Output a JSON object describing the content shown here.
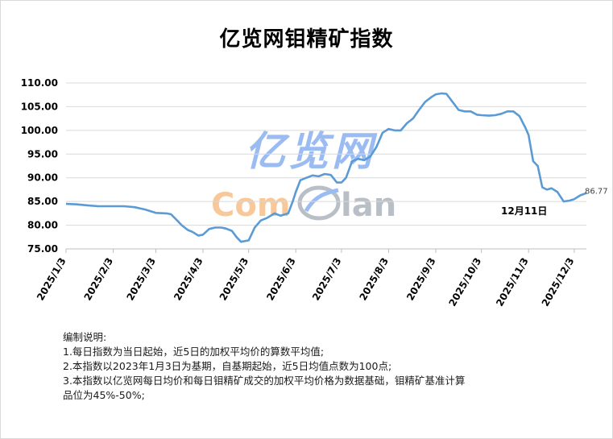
{
  "title": "亿览网钼精矿指数",
  "watermark": {
    "brand_cn": "亿览网",
    "brand_en_part1": "Com",
    "brand_en_part2": "lan"
  },
  "notes": {
    "heading": "编制说明:",
    "lines": [
      "1.每日指数为当日起始，近5日的加权平均价的算数平均值;",
      "2.本指数以2023年1月3日为基期，自基期起始，近5日均值点数为100点;",
      "3.本指数以亿览网每日均价和每日钼精矿成交的加权平均价格为数据基础，钼精矿基准计算",
      "品位为45%-50%;"
    ]
  },
  "chart_data": {
    "type": "line",
    "title": "亿览网钼精矿指数",
    "xlabel": "",
    "ylabel": "",
    "ylim": [
      75,
      110
    ],
    "y_ticks": [
      "75.00",
      "80.00",
      "85.00",
      "90.00",
      "95.00",
      "100.00",
      "105.00",
      "110.00"
    ],
    "x_ticks": [
      "2025/1/3",
      "2025/2/3",
      "2025/3/3",
      "2025/4/3",
      "2025/5/3",
      "2025/6/3",
      "2025/7/3",
      "2025/8/3",
      "2025/9/3",
      "2025/10/3",
      "2025/11/3",
      "2025/12/3"
    ],
    "grid": "horizontal",
    "line_color": "#5b9bd5",
    "x_start": "2025-01-03",
    "x_end": "2025-12-11",
    "series": [
      {
        "points": [
          [
            "2025-01-03",
            84.5
          ],
          [
            "2025-01-10",
            84.4
          ],
          [
            "2025-01-17",
            84.2
          ],
          [
            "2025-01-24",
            84.0
          ],
          [
            "2025-02-03",
            84.0
          ],
          [
            "2025-02-10",
            84.0
          ],
          [
            "2025-02-17",
            83.8
          ],
          [
            "2025-02-24",
            83.3
          ],
          [
            "2025-03-03",
            82.6
          ],
          [
            "2025-03-10",
            82.5
          ],
          [
            "2025-03-13",
            82.3
          ],
          [
            "2025-03-17",
            81.0
          ],
          [
            "2025-03-20",
            80.0
          ],
          [
            "2025-03-24",
            79.0
          ],
          [
            "2025-03-27",
            78.6
          ],
          [
            "2025-03-31",
            77.8
          ],
          [
            "2025-04-03",
            78.0
          ],
          [
            "2025-04-07",
            79.2
          ],
          [
            "2025-04-11",
            79.5
          ],
          [
            "2025-04-15",
            79.5
          ],
          [
            "2025-04-18",
            79.3
          ],
          [
            "2025-04-22",
            78.8
          ],
          [
            "2025-04-25",
            77.5
          ],
          [
            "2025-04-28",
            76.5
          ],
          [
            "2025-05-03",
            76.8
          ],
          [
            "2025-05-07",
            79.5
          ],
          [
            "2025-05-11",
            81.0
          ],
          [
            "2025-05-15",
            81.5
          ],
          [
            "2025-05-20",
            82.5
          ],
          [
            "2025-05-24",
            82.0
          ],
          [
            "2025-05-29",
            82.5
          ],
          [
            "2025-06-01",
            85.0
          ],
          [
            "2025-06-03",
            87.0
          ],
          [
            "2025-06-06",
            89.5
          ],
          [
            "2025-06-10",
            90.0
          ],
          [
            "2025-06-14",
            90.5
          ],
          [
            "2025-06-18",
            90.3
          ],
          [
            "2025-06-22",
            90.8
          ],
          [
            "2025-06-26",
            90.6
          ],
          [
            "2025-06-30",
            89.0
          ],
          [
            "2025-07-03",
            89.0
          ],
          [
            "2025-07-06",
            90.0
          ],
          [
            "2025-07-10",
            93.5
          ],
          [
            "2025-07-14",
            94.0
          ],
          [
            "2025-07-18",
            93.7
          ],
          [
            "2025-07-22",
            94.5
          ],
          [
            "2025-07-26",
            96.5
          ],
          [
            "2025-07-30",
            99.5
          ],
          [
            "2025-08-03",
            100.3
          ],
          [
            "2025-08-07",
            100.0
          ],
          [
            "2025-08-11",
            100.0
          ],
          [
            "2025-08-15",
            101.5
          ],
          [
            "2025-08-19",
            102.5
          ],
          [
            "2025-08-23",
            104.3
          ],
          [
            "2025-08-27",
            106.0
          ],
          [
            "2025-08-31",
            107.0
          ],
          [
            "2025-09-03",
            107.6
          ],
          [
            "2025-09-07",
            107.8
          ],
          [
            "2025-09-10",
            107.7
          ],
          [
            "2025-09-14",
            106.0
          ],
          [
            "2025-09-18",
            104.3
          ],
          [
            "2025-09-22",
            104.0
          ],
          [
            "2025-09-26",
            104.0
          ],
          [
            "2025-09-30",
            103.3
          ],
          [
            "2025-10-03",
            103.2
          ],
          [
            "2025-10-08",
            103.1
          ],
          [
            "2025-10-12",
            103.2
          ],
          [
            "2025-10-16",
            103.5
          ],
          [
            "2025-10-20",
            104.0
          ],
          [
            "2025-10-24",
            104.0
          ],
          [
            "2025-10-28",
            103.0
          ],
          [
            "2025-11-01",
            100.5
          ],
          [
            "2025-11-03",
            99.0
          ],
          [
            "2025-11-06",
            93.5
          ],
          [
            "2025-11-09",
            92.5
          ],
          [
            "2025-11-12",
            88.0
          ],
          [
            "2025-11-15",
            87.5
          ],
          [
            "2025-11-18",
            87.8
          ],
          [
            "2025-11-22",
            87.0
          ],
          [
            "2025-11-26",
            85.0
          ],
          [
            "2025-11-30",
            85.2
          ],
          [
            "2025-12-03",
            85.5
          ],
          [
            "2025-12-07",
            86.3
          ],
          [
            "2025-12-11",
            86.77
          ]
        ]
      }
    ],
    "annotations": [
      {
        "text": "86.77",
        "at": "2025-12-11"
      },
      {
        "text": "12月11日",
        "at": "2025-12-11"
      }
    ]
  }
}
